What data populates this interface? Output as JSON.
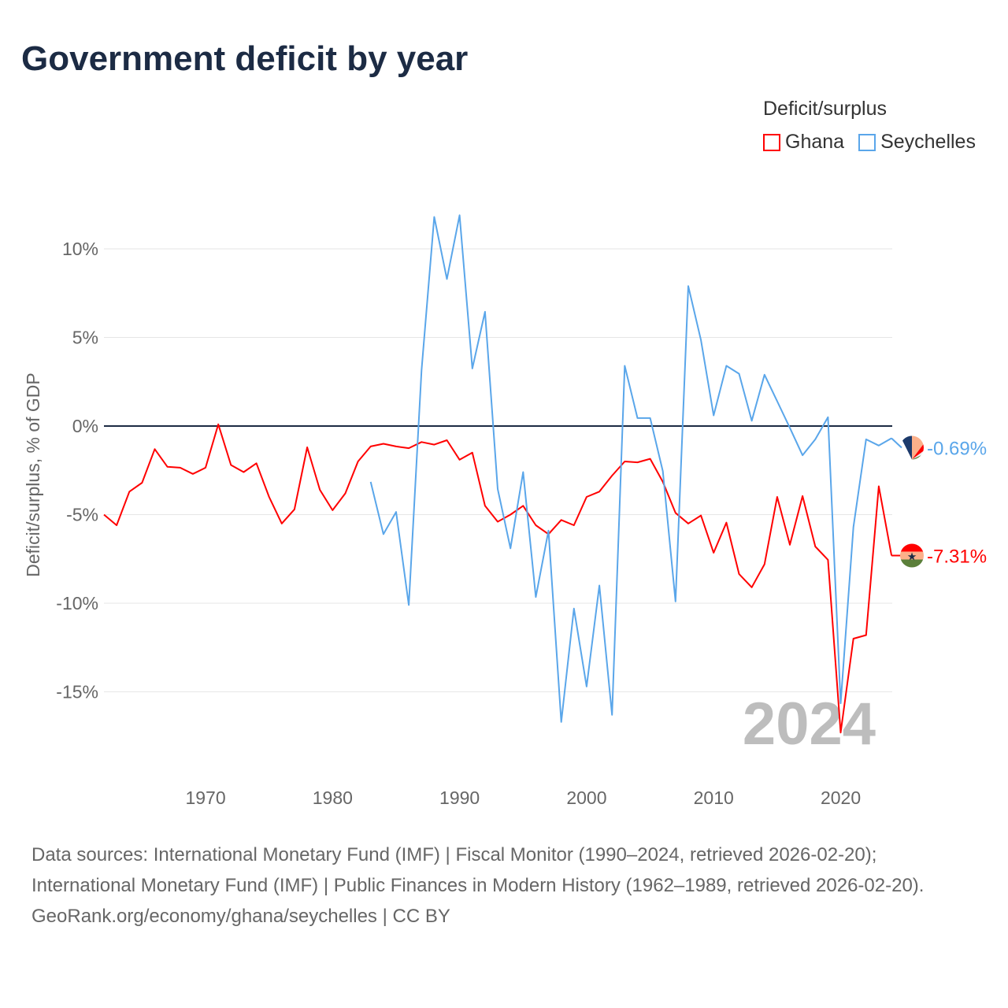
{
  "title": "Government deficit by year",
  "legend": {
    "title": "Deficit/surplus",
    "items": [
      {
        "name": "Ghana",
        "color": "#ff0000"
      },
      {
        "name": "Seychelles",
        "color": "#5aa6ea"
      }
    ]
  },
  "footer": {
    "sources": "Data sources: International Monetary Fund (IMF) | Fiscal Monitor (1990–2024, retrieved 2026-02-20); International Monetary Fund (IMF) | Public Finances in Modern History (1962–1989, retrieved 2026-02-20).",
    "credit": "GeoRank.org/economy/ghana/seychelles | CC BY"
  },
  "chart_data": {
    "type": "line",
    "title": "Government deficit by year",
    "xlabel": "",
    "ylabel": "Deficit/surplus, % of GDP",
    "xlim": [
      1962,
      2024
    ],
    "ylim": [
      -19,
      13
    ],
    "x_ticks": [
      1970,
      1980,
      1990,
      2000,
      2010,
      2020
    ],
    "y_ticks": [
      10,
      5,
      0,
      -5,
      -10,
      -15
    ],
    "y_tick_labels": [
      "10%",
      "5%",
      "0%",
      "-5%",
      "-10%",
      "-15%"
    ],
    "year_watermark": "2024",
    "legend_position": "top-right",
    "series": [
      {
        "name": "Ghana",
        "color": "#ff0000",
        "end_label": "-7.31%",
        "start": 1962,
        "values": [
          -5.0,
          -5.6,
          -3.7,
          -3.2,
          -1.3,
          -2.3,
          -2.35,
          -2.7,
          -2.35,
          0.1,
          -2.2,
          -2.6,
          -2.1,
          -4.0,
          -5.5,
          -4.7,
          -1.2,
          -3.6,
          -4.75,
          -3.8,
          -2.0,
          -1.15,
          -1.0,
          -1.15,
          -1.25,
          -0.9,
          -1.05,
          -0.8,
          -1.9,
          -1.5,
          -4.5,
          -5.4,
          -5.0,
          -4.5,
          -5.6,
          -6.1,
          -5.3,
          -5.6,
          -4.0,
          -3.7,
          -2.8,
          -2.0,
          -2.05,
          -1.85,
          -3.15,
          -4.9,
          -5.5,
          -5.05,
          -7.15,
          -5.45,
          -8.35,
          -9.1,
          -7.8,
          -4.0,
          -6.7,
          -3.95,
          -6.8,
          -7.55,
          -17.3,
          -12.0,
          -11.8,
          -3.4,
          -7.31
        ]
      },
      {
        "name": "Seychelles",
        "color": "#5aa6ea",
        "end_label": "-0.69%",
        "start": 1983,
        "values": [
          -3.15,
          -6.1,
          -4.85,
          -10.1,
          3.15,
          11.8,
          8.3,
          11.9,
          3.25,
          6.45,
          -3.55,
          -6.9,
          -2.6,
          -9.65,
          -5.9,
          -16.7,
          -10.3,
          -14.7,
          -9.0,
          -16.3,
          3.4,
          0.45,
          0.45,
          -2.55,
          -9.9,
          7.9,
          4.85,
          0.6,
          3.4,
          2.95,
          0.3,
          2.9,
          1.4,
          -0.1,
          -1.65,
          -0.75,
          0.5,
          -15.65,
          -5.7,
          -0.75,
          -1.1,
          -0.69
        ]
      }
    ]
  }
}
